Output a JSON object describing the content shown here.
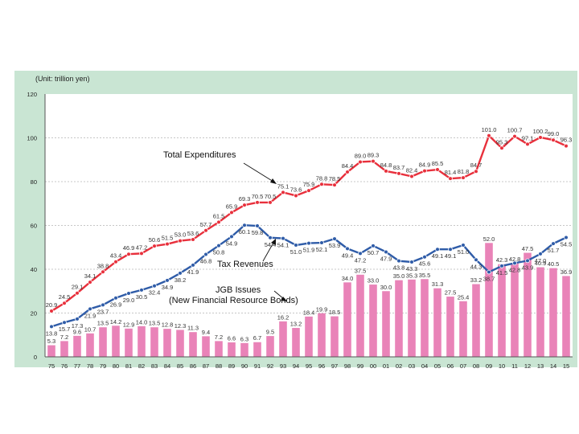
{
  "chart_data": {
    "type": "bar",
    "unit_label": "(Unit: trillion yen)",
    "x": [
      "75",
      "76",
      "77",
      "78",
      "79",
      "80",
      "81",
      "82",
      "83",
      "84",
      "85",
      "86",
      "87",
      "88",
      "89",
      "90",
      "91",
      "92",
      "93",
      "94",
      "95",
      "96",
      "97",
      "98",
      "99",
      "00",
      "01",
      "02",
      "03",
      "04",
      "05",
      "06",
      "07",
      "08",
      "09",
      "10",
      "11",
      "12",
      "13",
      "14",
      "15"
    ],
    "ylim": [
      0,
      120
    ],
    "yticks": [
      0,
      20,
      40,
      60,
      80,
      100,
      120
    ],
    "series": [
      {
        "name": "Total Expenditures",
        "kind": "line",
        "color": "#e8303c",
        "values": [
          20.9,
          24.5,
          29.1,
          34.1,
          38.8,
          43.4,
          46.9,
          47.2,
          50.6,
          51.5,
          53.0,
          53.6,
          57.7,
          61.5,
          65.9,
          69.3,
          70.5,
          70.5,
          75.1,
          73.6,
          75.9,
          78.8,
          78.5,
          84.4,
          89.0,
          89.3,
          84.8,
          83.7,
          82.4,
          84.9,
          85.5,
          81.4,
          81.8,
          84.7,
          101.0,
          95.3,
          100.7,
          97.1,
          100.2,
          99.0,
          96.3
        ]
      },
      {
        "name": "Tax Revenues",
        "kind": "line",
        "color": "#2f5ca8",
        "values": [
          13.8,
          15.7,
          17.3,
          21.9,
          23.7,
          26.9,
          29.0,
          30.5,
          32.4,
          34.9,
          38.2,
          41.9,
          46.8,
          50.8,
          54.9,
          60.1,
          59.8,
          54.4,
          54.1,
          51.0,
          51.9,
          52.1,
          53.9,
          49.4,
          47.2,
          50.7,
          47.9,
          43.8,
          43.3,
          45.6,
          49.1,
          49.1,
          51.0,
          44.3,
          38.7,
          41.5,
          42.8,
          43.9,
          47.0,
          51.7,
          54.5
        ]
      },
      {
        "name": "JGB Issues (New Financial Resource Bonds)",
        "kind": "bar",
        "color": "#e983b8",
        "values": [
          5.3,
          7.2,
          9.6,
          10.7,
          13.5,
          14.2,
          12.9,
          14.0,
          13.5,
          12.8,
          12.3,
          11.3,
          9.4,
          7.2,
          6.6,
          6.3,
          6.7,
          9.5,
          16.2,
          13.2,
          18.4,
          19.9,
          18.5,
          34.0,
          37.5,
          33.0,
          30.0,
          35.0,
          35.3,
          35.5,
          31.3,
          27.5,
          25.4,
          33.2,
          52.0,
          42.3,
          42.8,
          47.5,
          40.9,
          40.5,
          36.9
        ]
      }
    ],
    "annotations": {
      "total": "Total Expenditures",
      "tax": "Tax Revenues",
      "jgb_line1": "JGB Issues",
      "jgb_line2": "(New Financial Resource Bonds)"
    }
  }
}
